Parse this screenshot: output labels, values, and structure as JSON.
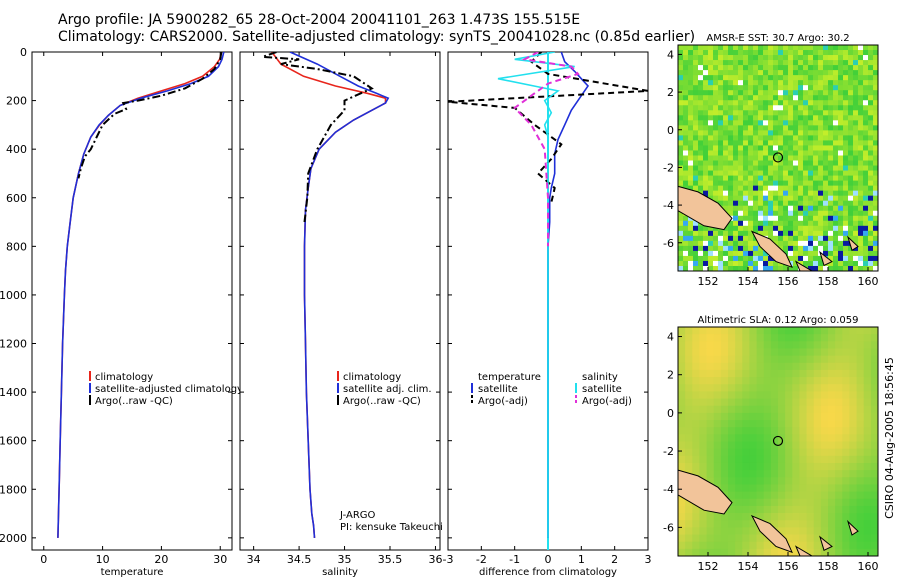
{
  "header": {
    "line1": "Argo profile: JA 5900282_65 28-Oct-2004 20041101_263 1.473S 155.515E",
    "line2": "Climatology: CARS2000. Satellite-adjusted climatology: synTS_20041028.nc (0.85d earlier)"
  },
  "colors": {
    "clim": "#e8251c",
    "sat": "#1f2fd8",
    "argo": "#000000",
    "sal_sat": "#22e0ee",
    "sal_argo": "#e030d8",
    "land": "#f2c49a"
  },
  "chart_data": [
    {
      "type": "line",
      "id": "temperature",
      "xlabel": "temperature",
      "xlim": [
        -2,
        32
      ],
      "ylim": [
        0,
        2050
      ],
      "xticks": [
        0,
        10,
        20,
        30
      ],
      "yticks": [
        0,
        200,
        400,
        600,
        800,
        1000,
        1200,
        1400,
        1600,
        1800,
        2000
      ],
      "series": [
        {
          "name": "climatology",
          "color": "#e8251c",
          "style": "solid",
          "x": [
            30.2,
            29.9,
            29.0,
            27.0,
            24.0,
            20.0,
            16.0,
            13.0,
            11.0,
            9.5,
            8.0,
            6.8,
            5.9,
            5.0,
            4.5,
            4.0,
            3.7,
            3.5,
            3.2,
            3.0,
            2.8,
            2.6,
            2.5,
            2.4
          ],
          "y": [
            0,
            30,
            60,
            100,
            130,
            160,
            190,
            220,
            260,
            300,
            350,
            420,
            500,
            600,
            700,
            800,
            900,
            1000,
            1200,
            1400,
            1600,
            1800,
            1900,
            2000
          ]
        },
        {
          "name": "satellite-adjusted climatology",
          "color": "#1f2fd8",
          "style": "solid",
          "x": [
            30.6,
            30.3,
            29.7,
            28.0,
            25.0,
            21.0,
            16.5,
            13.0,
            11.0,
            9.4,
            8.0,
            6.8,
            5.9,
            5.0,
            4.5,
            4.0,
            3.7,
            3.5,
            3.2,
            3.0,
            2.8,
            2.6,
            2.5,
            2.4
          ],
          "y": [
            0,
            30,
            60,
            100,
            130,
            160,
            190,
            220,
            260,
            300,
            350,
            420,
            500,
            600,
            700,
            800,
            900,
            1000,
            1200,
            1400,
            1600,
            1800,
            1900,
            2000
          ]
        },
        {
          "name": "Argo(..raw -QC)",
          "color": "#000000",
          "style": "dashdot",
          "x": [
            30.2,
            30.0,
            29.0,
            27.0,
            24.0,
            20.0,
            16.0,
            13.5,
            14.0,
            12.0,
            10.0,
            9.0,
            8.0,
            7.0,
            6.3,
            5.9
          ],
          "y": [
            0,
            30,
            70,
            110,
            150,
            180,
            200,
            210,
            235,
            255,
            300,
            350,
            400,
            430,
            480,
            520
          ]
        }
      ],
      "legend": {
        "placement": "bottom-right",
        "entries": [
          "climatology",
          "satellite-adjusted climatology",
          "Argo(..raw -QC)"
        ]
      }
    },
    {
      "type": "line",
      "id": "salinity",
      "xlabel": "salinity",
      "xlim": [
        33.85,
        36.05
      ],
      "ylim": [
        0,
        2050
      ],
      "xticks": [
        34,
        34.5,
        35,
        35.5,
        36
      ],
      "series": [
        {
          "name": "climatology",
          "color": "#e8251c",
          "style": "solid",
          "x": [
            34.2,
            34.3,
            34.55,
            34.9,
            35.25,
            35.45,
            35.45,
            35.3,
            35.1,
            34.9,
            34.72,
            34.63,
            34.6,
            34.57,
            34.56,
            34.56,
            34.57,
            34.58,
            34.6,
            34.62,
            34.64,
            34.66,
            34.67
          ],
          "y": [
            0,
            50,
            100,
            140,
            170,
            190,
            210,
            240,
            280,
            330,
            400,
            480,
            560,
            650,
            800,
            1000,
            1200,
            1400,
            1600,
            1800,
            1900,
            1950,
            2000
          ]
        },
        {
          "name": "satellite adj. clim.",
          "color": "#1f2fd8",
          "style": "solid",
          "x": [
            34.4,
            34.7,
            34.95,
            35.15,
            35.35,
            35.48,
            35.45,
            35.3,
            35.1,
            34.9,
            34.72,
            34.63,
            34.6,
            34.57,
            34.56,
            34.56,
            34.57,
            34.58,
            34.6,
            34.62,
            34.64,
            34.66,
            34.67
          ],
          "y": [
            0,
            50,
            100,
            140,
            170,
            190,
            210,
            240,
            280,
            330,
            400,
            480,
            560,
            650,
            800,
            1000,
            1200,
            1400,
            1600,
            1800,
            1900,
            1950,
            2000
          ]
        },
        {
          "name": "Argo(..raw -QC)",
          "color": "#000000",
          "style": "dashdot",
          "x": [
            34.25,
            34.1,
            34.5,
            34.3,
            34.7,
            35.1,
            35.3,
            35.0,
            35.0,
            34.85,
            34.7,
            34.6,
            34.59,
            34.56
          ],
          "y": [
            0,
            20,
            30,
            50,
            70,
            100,
            150,
            200,
            240,
            300,
            400,
            500,
            600,
            700
          ]
        }
      ],
      "annotation": {
        "line1": "J-ARGO",
        "line2": "PI: kensuke Takeuchi"
      },
      "legend": {
        "placement": "bottom-right",
        "entries": [
          "climatology",
          "satellite adj. clim.",
          "Argo(..raw -QC)"
        ]
      }
    },
    {
      "type": "line",
      "id": "difference",
      "xlabel": "difference from climatology",
      "xlim": [
        -3,
        3
      ],
      "ylim": [
        0,
        2050
      ],
      "xticks": [
        -3,
        -2,
        -1,
        0,
        1,
        2,
        3
      ],
      "series": [
        {
          "name": "temperature satellite",
          "color": "#1f2fd8",
          "style": "solid",
          "x": [
            0.4,
            0.5,
            0.8,
            1.0,
            1.2,
            1.0,
            0.7,
            0.5,
            0.3,
            0.2,
            0.2,
            0.1,
            0.05,
            0.05,
            0.0,
            0.0,
            0.0
          ],
          "y": [
            0,
            40,
            80,
            110,
            140,
            180,
            240,
            300,
            360,
            420,
            500,
            560,
            600,
            700,
            800,
            1000,
            2000
          ]
        },
        {
          "name": "temperature Argo(-adj)",
          "color": "#000000",
          "style": "dashed",
          "x": [
            -0.2,
            -0.5,
            0.0,
            3.0,
            -1.0,
            -3.0,
            -1.0,
            -0.4,
            0.4,
            0.1,
            -0.3,
            0.2,
            0.1
          ],
          "y": [
            0,
            40,
            90,
            160,
            190,
            205,
            230,
            300,
            380,
            440,
            500,
            560,
            620
          ]
        },
        {
          "name": "salinity satellite",
          "color": "#22e0ee",
          "style": "solid",
          "x": [
            0.2,
            -1.0,
            0.8,
            -1.5,
            0.3,
            -0.1,
            0.1,
            -0.1,
            0.0,
            0.0,
            0.0,
            0.0
          ],
          "y": [
            0,
            30,
            60,
            110,
            160,
            200,
            250,
            300,
            350,
            500,
            1000,
            2000
          ]
        },
        {
          "name": "salinity Argo(-adj)",
          "color": "#e030d8",
          "style": "dashed",
          "x": [
            -0.3,
            -0.7,
            0.7,
            0.9,
            0.0,
            -0.5,
            -1.0,
            -0.5,
            -0.1,
            0.0,
            0.0
          ],
          "y": [
            0,
            30,
            60,
            90,
            130,
            180,
            230,
            300,
            400,
            600,
            800
          ]
        }
      ],
      "legend": {
        "placement": "bottom",
        "entries": [
          "temperature",
          "satellite",
          "Argo(-adj)",
          "salinity",
          "satellite",
          "Argo(-adj)"
        ]
      }
    },
    {
      "type": "heatmap",
      "id": "sst-map",
      "title": "AMSR-E SST: 30.7 Argo: 30.2",
      "xlim": [
        150.5,
        160.5
      ],
      "ylim": [
        -7.5,
        4.5
      ],
      "xticks": [
        152,
        154,
        156,
        158,
        160
      ],
      "yticks": [
        4,
        2,
        0,
        -2,
        -4,
        -6
      ],
      "marker": {
        "lon": 155.5,
        "lat": -1.47
      }
    },
    {
      "type": "heatmap",
      "id": "sla-map",
      "title": "Altimetric SLA: 0.12 Argo: 0.059",
      "xlim": [
        150.5,
        160.5
      ],
      "ylim": [
        -7.5,
        4.5
      ],
      "xticks": [
        152,
        154,
        156,
        158,
        160
      ],
      "yticks": [
        4,
        2,
        0,
        -2,
        -4,
        -6
      ],
      "marker": {
        "lon": 155.5,
        "lat": -1.47
      }
    }
  ],
  "footer": {
    "stamp": "CSIRO 04-Aug-2005 18:56:45"
  }
}
